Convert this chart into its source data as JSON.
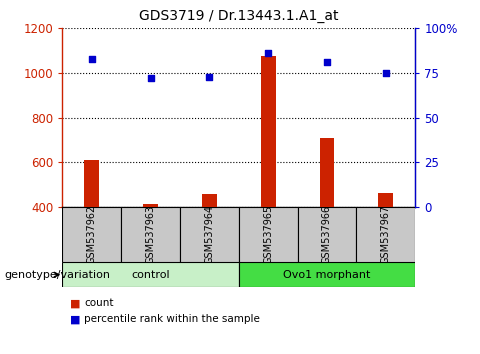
{
  "title": "GDS3719 / Dr.13443.1.A1_at",
  "samples": [
    "GSM537962",
    "GSM537963",
    "GSM537964",
    "GSM537965",
    "GSM537966",
    "GSM537967"
  ],
  "count_values": [
    610,
    415,
    460,
    1075,
    710,
    465
  ],
  "percentile_values": [
    83,
    72,
    73,
    86,
    81,
    75
  ],
  "count_base": 400,
  "left_ylim": [
    400,
    1200
  ],
  "right_ylim": [
    0,
    100
  ],
  "left_yticks": [
    400,
    600,
    800,
    1000,
    1200
  ],
  "right_yticks": [
    0,
    25,
    50,
    75,
    100
  ],
  "right_yticklabels": [
    "0",
    "25",
    "50",
    "75",
    "100%"
  ],
  "groups": [
    {
      "label": "control",
      "indices": [
        0,
        1,
        2
      ],
      "color": "#C8F0C8"
    },
    {
      "label": "Ovo1 morphant",
      "indices": [
        3,
        4,
        5
      ],
      "color": "#44DD44"
    }
  ],
  "bar_color": "#CC2200",
  "dot_color": "#0000CC",
  "bar_width": 0.25,
  "grid_color": "black",
  "grid_linewidth": 0.8,
  "sample_box_color": "#C8C8C8",
  "left_axis_color": "#CC2200",
  "right_axis_color": "#0000CC",
  "legend_items": [
    "count",
    "percentile rank within the sample"
  ],
  "genotype_label": "genotype/variation"
}
